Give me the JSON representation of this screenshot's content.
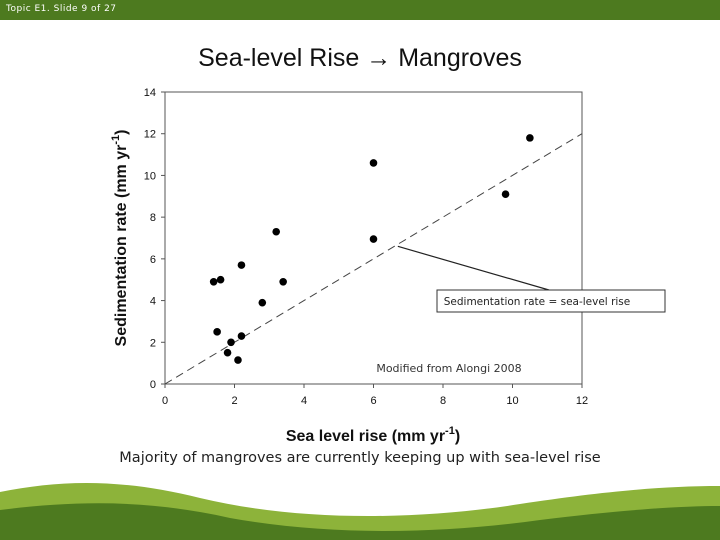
{
  "slide": {
    "header_label": "Topic E1. Slide 9 of 27",
    "title": "Sea-level Rise → Mangroves",
    "caption": "Majority of mangroves are currently keeping up with sea-level rise",
    "accent_color": "#4d7a1f",
    "accent_light": "#8db33a"
  },
  "chart_data": {
    "type": "scatter",
    "xlabel": "Sea level rise (mm yr",
    "xlabel_sup": "-1",
    "xlabel_end": ")",
    "ylabel": "Sedimentation rate (mm yr",
    "ylabel_sup": "-1",
    "ylabel_end": ")",
    "xlim": [
      0,
      12
    ],
    "ylim": [
      0,
      14
    ],
    "xticks": [
      "0",
      "2",
      "4",
      "6",
      "8",
      "10",
      "12"
    ],
    "yticks": [
      "0",
      "2",
      "4",
      "6",
      "8",
      "10",
      "12",
      "14"
    ],
    "points": [
      {
        "x": 1.4,
        "y": 4.9
      },
      {
        "x": 1.6,
        "y": 5.0
      },
      {
        "x": 1.5,
        "y": 2.5
      },
      {
        "x": 1.8,
        "y": 1.5
      },
      {
        "x": 1.9,
        "y": 2.0
      },
      {
        "x": 2.1,
        "y": 1.15
      },
      {
        "x": 2.2,
        "y": 2.3
      },
      {
        "x": 2.2,
        "y": 5.7
      },
      {
        "x": 2.8,
        "y": 3.9
      },
      {
        "x": 3.2,
        "y": 7.3
      },
      {
        "x": 3.4,
        "y": 4.9
      },
      {
        "x": 6.0,
        "y": 10.6
      },
      {
        "x": 6.0,
        "y": 6.95
      },
      {
        "x": 9.8,
        "y": 9.1
      },
      {
        "x": 10.5,
        "y": 11.8
      }
    ],
    "reference_line": {
      "x": [
        0,
        12
      ],
      "y": [
        0,
        12
      ],
      "style": "dashed"
    },
    "annotation_line_label": "Sedimentation rate = sea-level rise",
    "annotation_anchor": {
      "x": 6.7,
      "y": 6.6
    },
    "source_note": "Modified from Alongi 2008"
  }
}
